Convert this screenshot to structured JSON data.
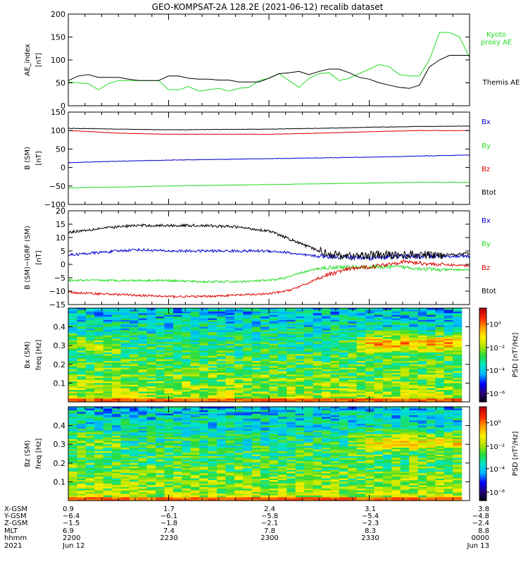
{
  "title": "GEO-KOMPSAT-2A 128.2E (2021-06-12) recalib dataset",
  "colors": {
    "black": "#000000",
    "green": "#22dd22",
    "blue": "#0000cc",
    "red": "#dd0000"
  },
  "chart_data": [
    {
      "type": "line",
      "id": "ae",
      "ylabel_line1": "AE_index",
      "ylabel_line2": "[nT]",
      "ylim": [
        0,
        200
      ],
      "yticks": [
        "0",
        "50",
        "100",
        "150",
        "200"
      ],
      "legend": [
        {
          "label": "Kyoto",
          "color": "#22dd22"
        },
        {
          "label": "proxy AE",
          "color": "#22dd22"
        },
        {
          "label": "Themis AE",
          "color": "#000000"
        }
      ],
      "series": [
        {
          "name": "Kyoto proxy AE",
          "color": "#22dd22",
          "x": [
            2200,
            2203,
            2206,
            2209,
            2212,
            2215,
            2218,
            2221,
            2224,
            2227,
            2230,
            2233,
            2236,
            2239,
            2242,
            2245,
            2248,
            2251,
            2254,
            2257,
            2300,
            2303,
            2306,
            2309,
            2312,
            2315,
            2318,
            2321,
            2324,
            2327,
            2330,
            2333,
            2336,
            2339,
            2342,
            2345,
            2348,
            2351,
            2354,
            2357,
            2360
          ],
          "values": [
            52,
            50,
            48,
            35,
            48,
            55,
            55,
            55,
            55,
            55,
            35,
            35,
            42,
            32,
            35,
            38,
            32,
            38,
            40,
            55,
            60,
            70,
            55,
            40,
            60,
            70,
            72,
            55,
            60,
            70,
            80,
            90,
            85,
            68,
            65,
            65,
            100,
            160,
            160,
            150,
            105
          ]
        },
        {
          "name": "Themis AE",
          "color": "#000000",
          "x": [
            2200,
            2203,
            2206,
            2209,
            2212,
            2215,
            2218,
            2221,
            2224,
            2227,
            2230,
            2233,
            2236,
            2239,
            2242,
            2245,
            2248,
            2251,
            2254,
            2257,
            2300,
            2303,
            2306,
            2309,
            2312,
            2315,
            2318,
            2321,
            2324,
            2327,
            2330,
            2333,
            2336,
            2339,
            2342,
            2345,
            2348,
            2351,
            2354,
            2357,
            2360
          ],
          "values": [
            55,
            65,
            68,
            62,
            62,
            62,
            58,
            55,
            55,
            55,
            65,
            65,
            60,
            58,
            58,
            56,
            56,
            52,
            52,
            52,
            60,
            70,
            72,
            75,
            68,
            75,
            80,
            80,
            72,
            62,
            58,
            50,
            45,
            40,
            38,
            45,
            85,
            100,
            110,
            110,
            110
          ]
        }
      ]
    },
    {
      "type": "line",
      "id": "bsm",
      "ylabel_line1": "B (SM)",
      "ylabel_line2": "[nT]",
      "ylim": [
        -100,
        150
      ],
      "yticks": [
        "−100",
        "−50",
        "0",
        "50",
        "100",
        "150"
      ],
      "legend": [
        {
          "label": "Bx",
          "color": "#0000cc"
        },
        {
          "label": "By",
          "color": "#22dd22"
        },
        {
          "label": "Bz",
          "color": "#dd0000"
        },
        {
          "label": "Btot",
          "color": "#000000"
        }
      ],
      "series": [
        {
          "name": "Btot",
          "color": "#000000",
          "x": [
            2200,
            2215,
            2230,
            2245,
            2300,
            2315,
            2330,
            2345,
            2360
          ],
          "values": [
            106,
            104,
            102,
            103,
            104,
            106,
            109,
            111,
            112
          ],
          "noise": 0.6
        },
        {
          "name": "Bz",
          "color": "#dd0000",
          "x": [
            2200,
            2215,
            2230,
            2245,
            2300,
            2315,
            2330,
            2345,
            2360
          ],
          "values": [
            100,
            93,
            90,
            90,
            90,
            93,
            97,
            100,
            100
          ],
          "noise": 0.6
        },
        {
          "name": "Bx",
          "color": "#0000cc",
          "x": [
            2200,
            2215,
            2230,
            2245,
            2300,
            2315,
            2330,
            2345,
            2360
          ],
          "values": [
            13,
            17,
            20,
            22,
            24,
            26,
            28,
            31,
            34
          ],
          "noise": 0.7
        },
        {
          "name": "By",
          "color": "#22dd22",
          "x": [
            2200,
            2215,
            2230,
            2245,
            2300,
            2315,
            2330,
            2345,
            2360
          ],
          "values": [
            -55,
            -53,
            -50,
            -48,
            -46,
            -44,
            -42,
            -40,
            -40
          ],
          "noise": 0.7
        }
      ]
    },
    {
      "type": "line",
      "id": "bres",
      "ylabel_line1": "B (SM)−IGRF (SM)",
      "ylabel_line2": "[nT]",
      "ylim": [
        -15,
        20
      ],
      "yticks": [
        "−15",
        "−10",
        "−5",
        "0",
        "5",
        "10",
        "15",
        "20"
      ],
      "legend": [
        {
          "label": "Bx",
          "color": "#0000cc"
        },
        {
          "label": "By",
          "color": "#22dd22"
        },
        {
          "label": "Bz",
          "color": "#dd0000"
        },
        {
          "label": "Btot",
          "color": "#000000"
        }
      ],
      "series": [
        {
          "name": "Bx",
          "color": "#0000cc",
          "x": [
            2200,
            2210,
            2220,
            2230,
            2240,
            2250,
            2300,
            2305,
            2310,
            2315,
            2320,
            2325,
            2330,
            2340,
            2350,
            2360
          ],
          "values": [
            3.5,
            4.5,
            5.5,
            5,
            5,
            5,
            5,
            4.5,
            3.5,
            3,
            3,
            2.5,
            2.5,
            3,
            3,
            3
          ],
          "noise": 0.5
        },
        {
          "name": "By",
          "color": "#22dd22",
          "x": [
            2200,
            2210,
            2220,
            2230,
            2240,
            2250,
            2300,
            2305,
            2310,
            2315,
            2320,
            2325,
            2330,
            2340,
            2350,
            2360
          ],
          "values": [
            -6,
            -6,
            -6,
            -6,
            -6.5,
            -6.5,
            -6,
            -5,
            -3,
            -1.5,
            -1,
            -1,
            -1,
            -1,
            -2,
            -2
          ],
          "noise": 0.4
        },
        {
          "name": "Bz",
          "color": "#dd0000",
          "x": [
            2200,
            2210,
            2220,
            2230,
            2240,
            2250,
            2300,
            2305,
            2310,
            2315,
            2320,
            2325,
            2330,
            2340,
            2350,
            2360
          ],
          "values": [
            -10.5,
            -11,
            -11.5,
            -12,
            -12,
            -11.5,
            -11,
            -10,
            -8,
            -5,
            -3,
            -1.5,
            -1,
            1,
            0,
            -0.5
          ],
          "noise": 0.4
        },
        {
          "name": "Btot",
          "color": "#000000",
          "x": [
            2200,
            2210,
            2220,
            2230,
            2240,
            2250,
            2300,
            2305,
            2310,
            2315,
            2320,
            2325,
            2330,
            2340,
            2350,
            2360
          ],
          "values": [
            12,
            13.5,
            14.5,
            14.5,
            14.5,
            14,
            12.5,
            10,
            7.5,
            5,
            3.5,
            3,
            3.5,
            3.5,
            3.5,
            4
          ],
          "noise": 0.5
        }
      ]
    },
    {
      "type": "heatmap",
      "id": "spec_bx",
      "ylabel_line1": "Bx (SM)",
      "ylabel_line2": "freq [Hz]",
      "ylim": [
        0,
        0.5
      ],
      "yticks": [
        "0.1",
        "0.2",
        "0.3",
        "0.4"
      ],
      "colorbar_label": "PSD [nT²/Hz]",
      "colorbar_ticks": [
        "10⁰",
        "10⁻²",
        "10⁻⁴",
        "10⁻⁶"
      ]
    },
    {
      "type": "heatmap",
      "id": "spec_bz",
      "ylabel_line1": "Bz (SM)",
      "ylabel_line2": "freq [Hz]",
      "ylim": [
        0,
        0.5
      ],
      "yticks": [
        "0.1",
        "0.2",
        "0.3",
        "0.4"
      ],
      "colorbar_label": "PSD [nT²/Hz]",
      "colorbar_ticks": [
        "10⁰",
        "10⁻²",
        "10⁻⁴",
        "10⁻⁶"
      ]
    }
  ],
  "xaxis": {
    "row_labels": [
      "X-GSM",
      "Y-GSM",
      "Z-GSM",
      "MLT",
      "hhmm",
      "2021"
    ],
    "ticks": [
      {
        "values": [
          "0.9",
          "−6.4",
          "−1.5",
          "6.9",
          "2200",
          "Jun 12"
        ]
      },
      {
        "values": [
          "1.7",
          "−6.1",
          "−1.8",
          "7.4",
          "2230",
          ""
        ]
      },
      {
        "values": [
          "2.4",
          "−5.8",
          "−2.1",
          "7.8",
          "2300",
          ""
        ]
      },
      {
        "values": [
          "3.1",
          "−5.4",
          "−2.3",
          "8.3",
          "2330",
          ""
        ]
      },
      {
        "values": [
          "3.8",
          "−4.8",
          "−2.4",
          "8.8",
          "0000",
          "Jun 13"
        ]
      }
    ]
  }
}
